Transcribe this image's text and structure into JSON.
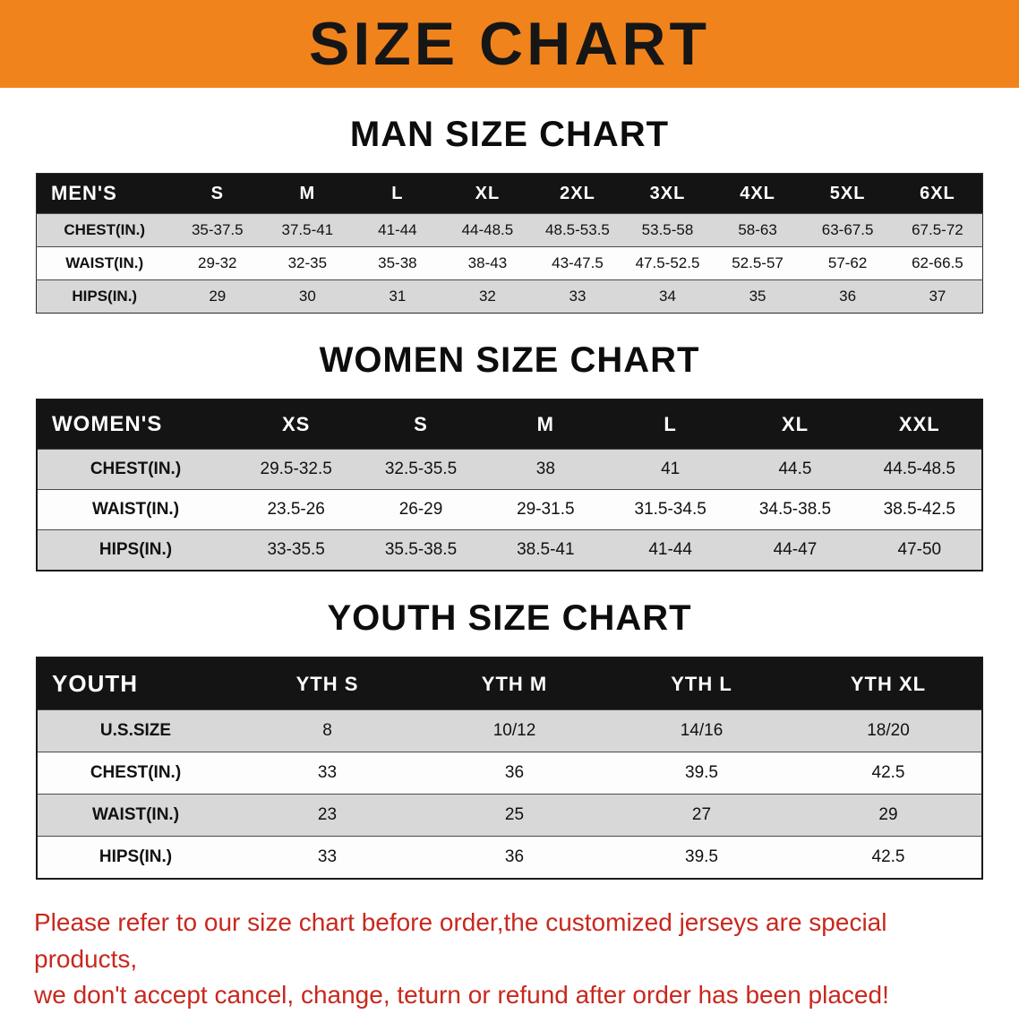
{
  "banner": {
    "title": "SIZE CHART"
  },
  "colors": {
    "banner_bg": "#F1831C",
    "table_header_bg": "#141414",
    "row_stripe": "#D8D8D8",
    "notice_text": "#C8281E"
  },
  "sections": [
    {
      "title": "MAN SIZE CHART",
      "table": {
        "header": [
          "MEN'S",
          "S",
          "M",
          "L",
          "XL",
          "2XL",
          "3XL",
          "4XL",
          "5XL",
          "6XL"
        ],
        "rows": [
          {
            "label": "CHEST(IN.)",
            "values": [
              "35-37.5",
              "37.5-41",
              "41-44",
              "44-48.5",
              "48.5-53.5",
              "53.5-58",
              "58-63",
              "63-67.5",
              "67.5-72"
            ]
          },
          {
            "label": "WAIST(IN.)",
            "values": [
              "29-32",
              "32-35",
              "35-38",
              "38-43",
              "43-47.5",
              "47.5-52.5",
              "52.5-57",
              "57-62",
              "62-66.5"
            ]
          },
          {
            "label": "HIPS(IN.)",
            "values": [
              "29",
              "30",
              "31",
              "32",
              "33",
              "34",
              "35",
              "36",
              "37"
            ]
          }
        ]
      }
    },
    {
      "title": "WOMEN SIZE CHART",
      "table": {
        "header": [
          "WOMEN'S",
          "XS",
          "S",
          "M",
          "L",
          "XL",
          "XXL"
        ],
        "rows": [
          {
            "label": "CHEST(IN.)",
            "values": [
              "29.5-32.5",
              "32.5-35.5",
              "38",
              "41",
              "44.5",
              "44.5-48.5"
            ]
          },
          {
            "label": "WAIST(IN.)",
            "values": [
              "23.5-26",
              "26-29",
              "29-31.5",
              "31.5-34.5",
              "34.5-38.5",
              "38.5-42.5"
            ]
          },
          {
            "label": "HIPS(IN.)",
            "values": [
              "33-35.5",
              "35.5-38.5",
              "38.5-41",
              "41-44",
              "44-47",
              "47-50"
            ]
          }
        ]
      }
    },
    {
      "title": "YOUTH SIZE CHART",
      "table": {
        "header": [
          "YOUTH",
          "YTH S",
          "YTH M",
          "YTH L",
          "YTH XL"
        ],
        "rows": [
          {
            "label": "U.S.SIZE",
            "values": [
              "8",
              "10/12",
              "14/16",
              "18/20"
            ]
          },
          {
            "label": "CHEST(IN.)",
            "values": [
              "33",
              "36",
              "39.5",
              "42.5"
            ]
          },
          {
            "label": "WAIST(IN.)",
            "values": [
              "23",
              "25",
              "27",
              "29"
            ]
          },
          {
            "label": "HIPS(IN.)",
            "values": [
              "33",
              "36",
              "39.5",
              "42.5"
            ]
          }
        ]
      }
    }
  ],
  "notice": {
    "line1": "Please refer to our size chart before order,the customized jerseys are special products,",
    "line2": "we don't accept cancel, change, teturn or refund after order has been placed!"
  }
}
